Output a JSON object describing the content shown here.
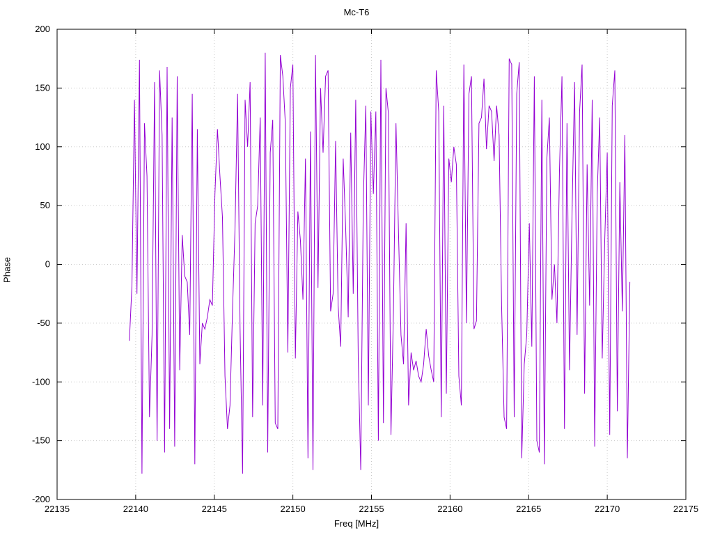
{
  "chart_data": {
    "type": "line",
    "title": "Mc-T6",
    "xlabel": "Freq [MHz]",
    "ylabel": "Phase",
    "xlim": [
      22135,
      22175
    ],
    "ylim": [
      -200,
      200
    ],
    "x_ticks": [
      22135,
      22140,
      22145,
      22150,
      22155,
      22160,
      22165,
      22170,
      22175
    ],
    "y_ticks": [
      -200,
      -150,
      -100,
      -50,
      0,
      50,
      100,
      150,
      200
    ],
    "grid": true,
    "legend": "none",
    "line_color": "#9400d3",
    "grid_color": "#c8c8c8",
    "border_color": "#000000",
    "series": [
      {
        "name": "Mc-T6",
        "x_start": 22139.6,
        "x_step": 0.16,
        "values": [
          -65,
          -18,
          140,
          -25,
          174,
          -178,
          120,
          75,
          -130,
          -60,
          155,
          -150,
          165,
          110,
          -160,
          168,
          -140,
          125,
          -155,
          160,
          -90,
          25,
          -10,
          -15,
          -60,
          145,
          -170,
          115,
          -85,
          -50,
          -55,
          -45,
          -30,
          -35,
          60,
          115,
          75,
          40,
          -95,
          -140,
          -120,
          -40,
          30,
          145,
          -55,
          -178,
          140,
          100,
          155,
          -130,
          35,
          50,
          125,
          -120,
          180,
          -160,
          95,
          123,
          -135,
          -140,
          178,
          160,
          120,
          -75,
          150,
          170,
          -80,
          45,
          20,
          -30,
          90,
          -165,
          113,
          -175,
          178,
          -20,
          150,
          95,
          160,
          165,
          -40,
          -25,
          105,
          -35,
          -70,
          90,
          30,
          -45,
          112,
          -25,
          140,
          -80,
          -175,
          55,
          135,
          -120,
          130,
          60,
          130,
          -150,
          174,
          -135,
          150,
          128,
          -145,
          -38,
          120,
          28,
          -60,
          -85,
          35,
          -120,
          -75,
          -90,
          -82,
          -95,
          -100,
          -85,
          -55,
          -78,
          -90,
          -100,
          165,
          130,
          -130,
          135,
          -110,
          90,
          70,
          100,
          85,
          -95,
          -120,
          170,
          -50,
          145,
          160,
          -55,
          -48,
          120,
          125,
          158,
          98,
          135,
          130,
          88,
          135,
          110,
          -35,
          -130,
          -140,
          175,
          170,
          -130,
          145,
          172,
          -165,
          -85,
          -60,
          35,
          -70,
          160,
          -150,
          -160,
          140,
          -170,
          90,
          125,
          -30,
          0,
          -50,
          80,
          160,
          -140,
          120,
          -90,
          45,
          155,
          -60,
          130,
          170,
          -110,
          85,
          -35,
          140,
          -155,
          60,
          125,
          -80,
          20,
          95,
          -145,
          135,
          165,
          -125,
          70,
          -40,
          110,
          -165,
          -15
        ]
      }
    ]
  }
}
